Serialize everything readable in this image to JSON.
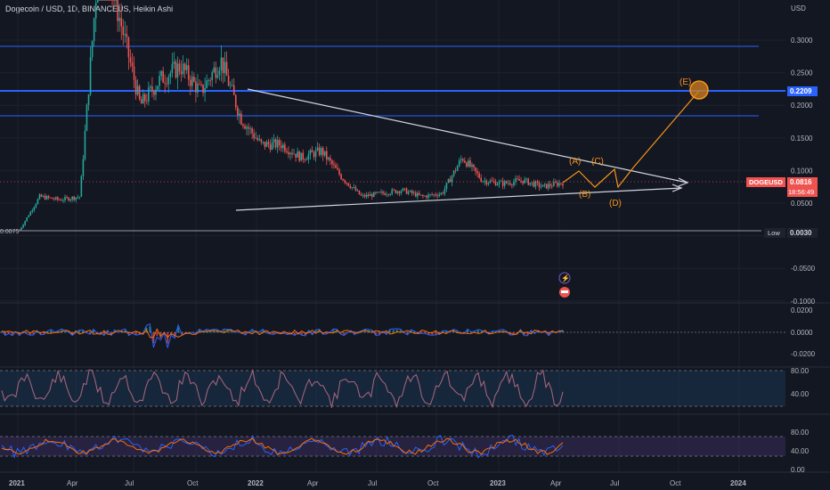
{
  "header": {
    "title": "Dogecoin / USD, 1D, BINANCEUS, Heikin Ashi",
    "currency": "USD"
  },
  "colors": {
    "background": "#131722",
    "grid": "#1e222d",
    "up": "#26a69a",
    "down": "#ef5350",
    "hline_blue": "#2962ff",
    "trendline": "#d1d4dc",
    "wave": "#f7931a",
    "macd": "#2962ff",
    "signal": "#ff6d00",
    "rsi": "#7e57c2",
    "stoch_k": "#2962ff",
    "stoch_d": "#ff6d00"
  },
  "price_axis": {
    "ticks": [
      "0.3000",
      "0.2500",
      "0.2000",
      "0.1500",
      "0.1000",
      "0.0500",
      "-0.0500",
      "-0.1000"
    ]
  },
  "price_tags": {
    "blue_level": "0.2209",
    "symbol": "DOGEUSD",
    "last": "0.0816",
    "countdown": "18:56:49",
    "low_label": "Low",
    "low_value": "0.0030",
    "left_low": "0.0075"
  },
  "wave_labels": {
    "A": "(A)",
    "B": "(B)",
    "C": "(C)",
    "D": "(D)",
    "E": "(E)"
  },
  "time_axis": {
    "labels": [
      "2021",
      "Apr",
      "Jul",
      "Oct",
      "2022",
      "Apr",
      "Jul",
      "Oct",
      "2023",
      "Apr",
      "Jul",
      "Oct",
      "2024"
    ]
  },
  "pane_axes": {
    "macd": [
      "0.0200",
      "0.0000",
      "-0.0200"
    ],
    "osc1": [
      "80.00",
      "40.00"
    ],
    "osc2": [
      "80.00",
      "40.00",
      "0.00"
    ]
  },
  "chart_data": {
    "type": "line",
    "title": "Dogecoin / USD, 1D, BINANCEUS, Heikin Ashi",
    "x": [
      "2021-01",
      "2021-02",
      "2021-03",
      "2021-04",
      "2021-05",
      "2021-06",
      "2021-07",
      "2021-08",
      "2021-09",
      "2021-10",
      "2021-11",
      "2021-12",
      "2022-01",
      "2022-02",
      "2022-03",
      "2022-04",
      "2022-05",
      "2022-06",
      "2022-07",
      "2022-08",
      "2022-09",
      "2022-10",
      "2022-11",
      "2022-12",
      "2023-01",
      "2023-02",
      "2023-03",
      "2023-04"
    ],
    "series": [
      {
        "values": [
          0.009,
          0.06,
          0.055,
          0.06,
          0.45,
          0.33,
          0.2,
          0.24,
          0.26,
          0.22,
          0.27,
          0.18,
          0.14,
          0.14,
          0.12,
          0.13,
          0.09,
          0.06,
          0.065,
          0.07,
          0.06,
          0.065,
          0.12,
          0.085,
          0.08,
          0.085,
          0.075,
          0.0816
        ]
      }
    ],
    "ylim": [
      -0.1,
      0.3
    ],
    "horizontal_levels": [
      0.29,
      0.2209,
      0.18,
      0.003
    ]
  }
}
